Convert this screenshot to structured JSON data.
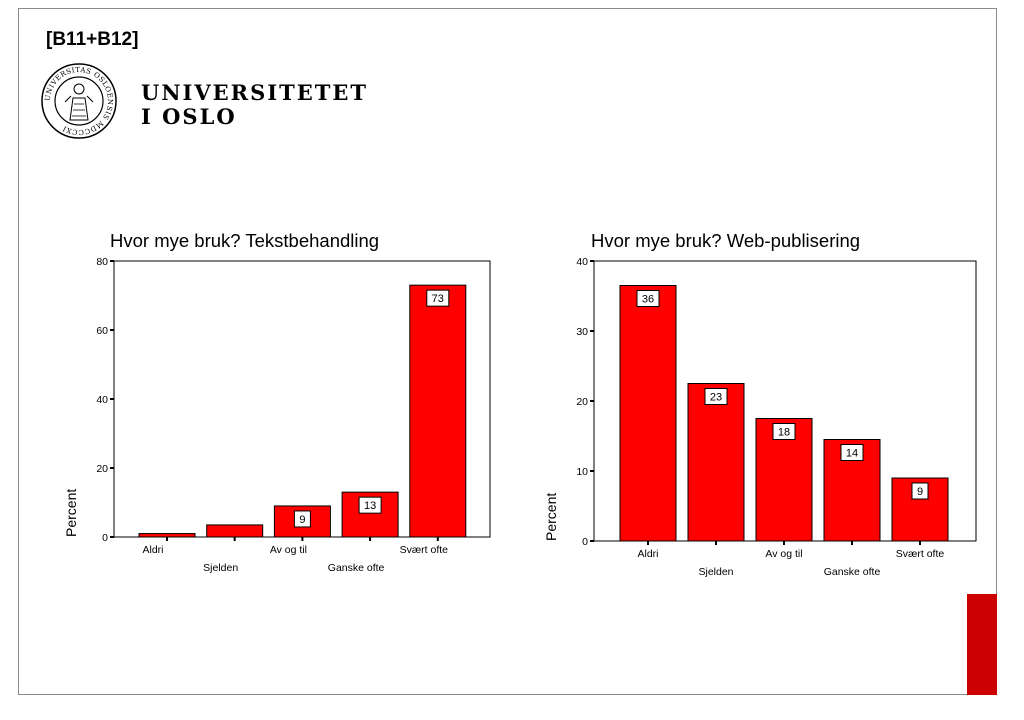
{
  "slide": {
    "code": "[B11+B12]",
    "logo_line1": "UNIVERSITETET",
    "logo_line2": "I OSLO",
    "seal_text": "UNIVERSITAS OSLOENSIS MDCCCXI",
    "accent_color": "#cc0000"
  },
  "chart_data": [
    {
      "type": "bar",
      "title": "Hvor mye bruk? Tekstbehandling",
      "xlabel": "",
      "ylabel": "Percent",
      "ylim": [
        0,
        80
      ],
      "yticks": [
        0,
        20,
        40,
        60,
        80
      ],
      "categories": [
        "Aldri",
        "Sjelden",
        "Av og til",
        "Ganske ofte",
        "Svært ofte"
      ],
      "values": [
        1,
        3.5,
        9,
        13,
        73
      ],
      "data_labels": [
        "",
        "",
        "9",
        "13",
        "73"
      ],
      "bar_color": "#ff0000",
      "grid": false,
      "legend": "none"
    },
    {
      "type": "bar",
      "title": "Hvor mye bruk? Web-publisering",
      "xlabel": "",
      "ylabel": "Percent",
      "ylim": [
        0,
        40
      ],
      "yticks": [
        0,
        10,
        20,
        30,
        40
      ],
      "categories": [
        "Aldri",
        "Sjelden",
        "Av og til",
        "Ganske ofte",
        "Svært ofte"
      ],
      "values": [
        36.5,
        22.5,
        17.5,
        14.5,
        9
      ],
      "data_labels": [
        "36",
        "23",
        "18",
        "14",
        "9"
      ],
      "bar_color": "#ff0000",
      "grid": false,
      "legend": "none"
    }
  ]
}
